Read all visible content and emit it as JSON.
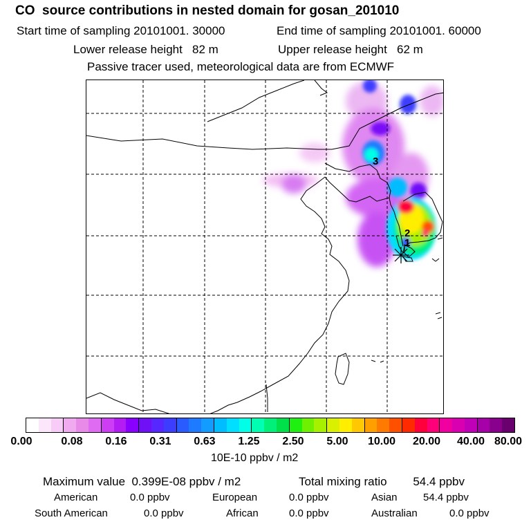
{
  "header": {
    "title": "CO  source contributions in nested domain for gosan_201010",
    "start_label": "Start time of sampling 20101001. 30000",
    "end_label": "End time of sampling 20101001. 60000",
    "lower_release": "Lower release height   82 m",
    "upper_release": "Upper release height   62 m",
    "tracer_note": "Passive tracer used, meteorological data are from ECMWF"
  },
  "map": {
    "station_markers": [
      "1",
      "2",
      "3"
    ]
  },
  "colorbar": {
    "tick_labels": [
      "0.00",
      "0.08",
      "0.16",
      "0.31",
      "0.63",
      "1.25",
      "2.50",
      "5.00",
      "10.00",
      "20.00",
      "40.00",
      "80.00"
    ],
    "colors": [
      "#ffffff",
      "#fbe6fb",
      "#f7ccf7",
      "#f0aaf0",
      "#e88ae8",
      "#df6bf3",
      "#cc3df3",
      "#b31cf3",
      "#8a00ff",
      "#6f10f7",
      "#5627ff",
      "#3d3dff",
      "#2a5bff",
      "#1e7bff",
      "#129cff",
      "#00bdff",
      "#00dfff",
      "#00ffe6",
      "#00ffb3",
      "#00f07a",
      "#00e04a",
      "#20f010",
      "#6ff000",
      "#a6f000",
      "#d9f000",
      "#ffee00",
      "#ffc800",
      "#ffa000",
      "#ff7a00",
      "#ff5000",
      "#ff2a00",
      "#ff003c",
      "#ff0078",
      "#f000a0",
      "#d800b0",
      "#c000b8",
      "#a600a8",
      "#88008c",
      "#6a006e"
    ],
    "unit": "10E-10 ppbv / m2"
  },
  "summary": {
    "max_value": "Maximum value  0.399E-08 ppbv / m2",
    "total_mixing": "Total mixing ratio        54.4 ppbv",
    "american_label": "American",
    "american_value": "0.0 ppbv",
    "european_label": "European",
    "european_value": "0.0 ppbv",
    "asian_label": "Asian",
    "asian_value": "54.4 ppbv",
    "south_american_label": "South American",
    "south_american_value": "0.0 ppbv",
    "african_label": "African",
    "african_value": "0.0 ppbv",
    "australian_label": "Australian",
    "australian_value": "0.0 ppbv"
  }
}
